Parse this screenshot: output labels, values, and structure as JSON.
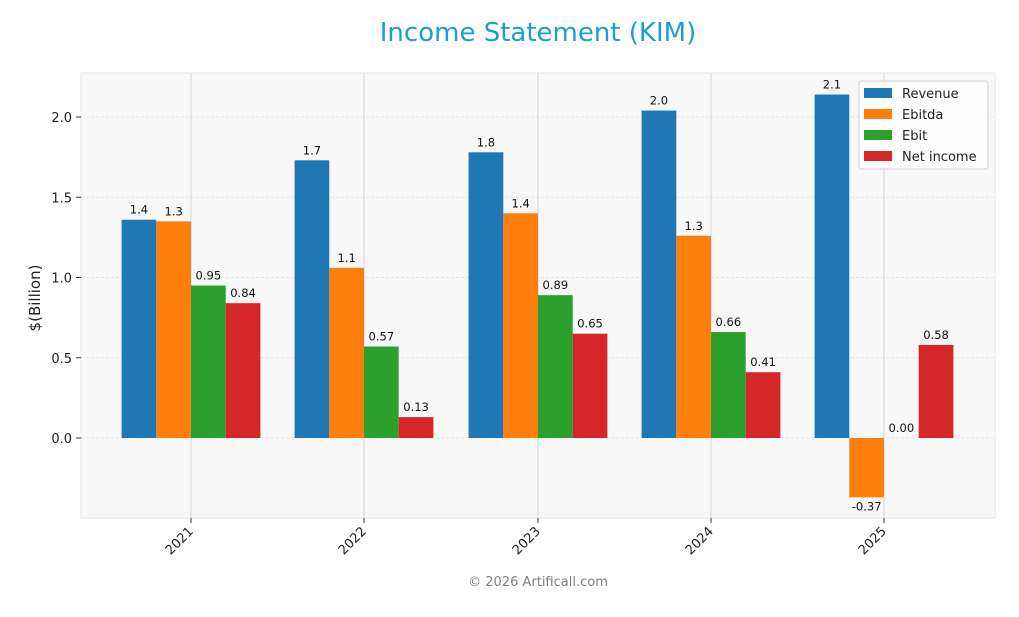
{
  "title": "Income Statement (KIM)",
  "footer": "© 2026 Artificall.com",
  "colors": {
    "title": "#1a9fd0",
    "revenue": "#1f77b4",
    "ebitda": "#ff7f0e",
    "ebit": "#2ca02c",
    "net_income": "#d62728",
    "plot_bg": "#f8f8f8"
  },
  "chart_data": {
    "type": "bar",
    "title": "Income Statement (KIM)",
    "xlabel": "",
    "ylabel": "$(Billion)",
    "categories": [
      "2021",
      "2022",
      "2023",
      "2024",
      "2025"
    ],
    "series": [
      {
        "name": "Revenue",
        "color": "#1f77b4",
        "values": [
          1.36,
          1.73,
          1.78,
          2.04,
          2.14
        ],
        "labels": [
          "1.4",
          "1.7",
          "1.8",
          "2.0",
          "2.1"
        ]
      },
      {
        "name": "Ebitda",
        "color": "#ff7f0e",
        "values": [
          1.35,
          1.06,
          1.4,
          1.26,
          -0.37
        ],
        "labels": [
          "1.3",
          "1.1",
          "1.4",
          "1.3",
          "-0.37"
        ]
      },
      {
        "name": "Ebit",
        "color": "#2ca02c",
        "values": [
          0.95,
          0.57,
          0.89,
          0.66,
          0.0
        ],
        "labels": [
          "0.95",
          "0.57",
          "0.89",
          "0.66",
          "0.00"
        ]
      },
      {
        "name": "Net income",
        "color": "#d62728",
        "values": [
          0.84,
          0.13,
          0.65,
          0.41,
          0.58
        ],
        "labels": [
          "0.84",
          "0.13",
          "0.65",
          "0.41",
          "0.58"
        ]
      }
    ],
    "yticks": [
      0.0,
      0.5,
      1.0,
      1.5,
      2.0
    ],
    "ytick_labels": [
      "0.0",
      "0.5",
      "1.0",
      "1.5",
      "2.0"
    ],
    "ylim": [
      -0.5,
      2.27
    ],
    "grid": true,
    "legend_position": "upper right"
  }
}
